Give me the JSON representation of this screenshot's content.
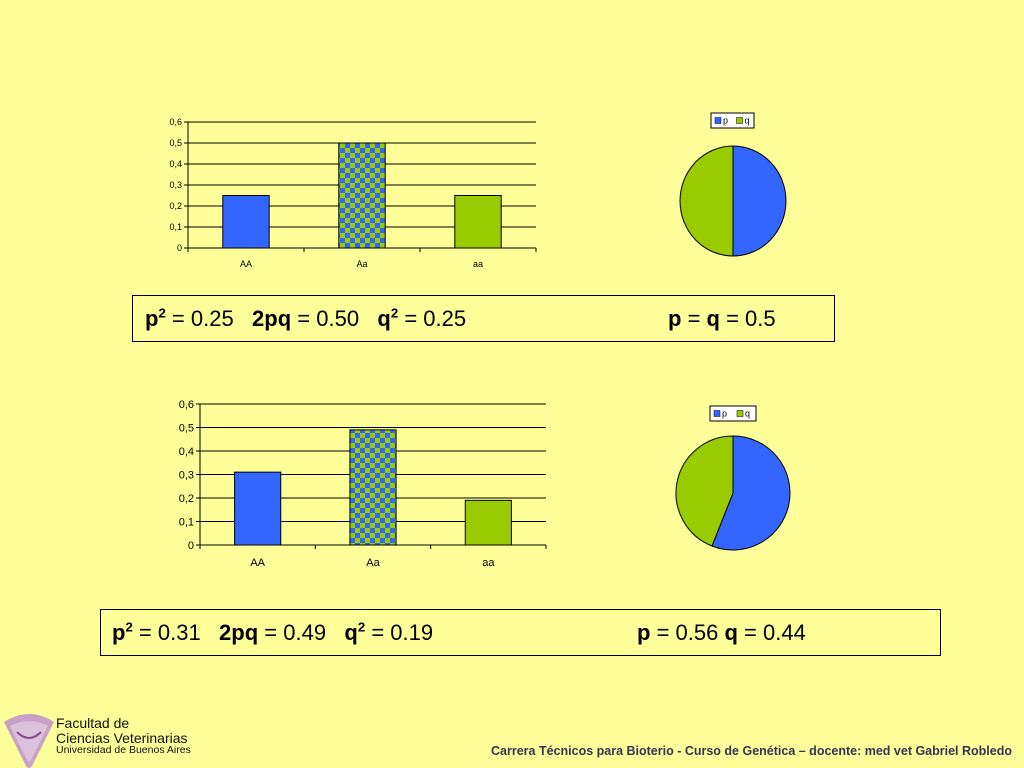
{
  "chart_data": [
    {
      "type": "bar",
      "categories": [
        "AA",
        "Aa",
        "aa"
      ],
      "values": [
        0.25,
        0.5,
        0.25
      ],
      "yticks": [
        "0",
        "0,1",
        "0,2",
        "0,3",
        "0,4",
        "0,5",
        "0,6"
      ],
      "ylim": [
        0,
        0.6
      ],
      "grid": true,
      "colors": [
        "#3366FF",
        "checkered",
        "#99CC00"
      ]
    },
    {
      "type": "pie",
      "legend": [
        "p",
        "q"
      ],
      "values": [
        0.5,
        0.5
      ],
      "colors": [
        "#3366FF",
        "#99CC00"
      ],
      "legend_position": "top"
    },
    {
      "type": "bar",
      "categories": [
        "AA",
        "Aa",
        "aa"
      ],
      "values": [
        0.31,
        0.49,
        0.19
      ],
      "yticks": [
        "0",
        "0,1",
        "0,2",
        "0,3",
        "0,4",
        "0,5",
        "0,6"
      ],
      "ylim": [
        0,
        0.6
      ],
      "grid": true,
      "colors": [
        "#3366FF",
        "checkered",
        "#99CC00"
      ]
    },
    {
      "type": "pie",
      "legend": [
        "p",
        "q"
      ],
      "values": [
        0.56,
        0.44
      ],
      "colors": [
        "#3366FF",
        "#99CC00"
      ],
      "legend_position": "top"
    }
  ],
  "formula1": {
    "p2": "p",
    "p2_val": " = 0.25  ",
    "pq": "2pq",
    "pq_val": " = 0.50  ",
    "q2": "q",
    "q2_val": " = 0.25",
    "p": "p",
    "eq": " = ",
    "q": "q",
    "pq_eq_val": " = 0.5",
    "sup": "2"
  },
  "formula2": {
    "p2": "p",
    "p2_val": " = 0.31  ",
    "pq": "2pq",
    "pq_val": " = 0.49  ",
    "q2": "q",
    "q2_val": " = 0.19",
    "p": "p",
    "p_val": " = 0.56 ",
    "q": "q",
    "q_val": " = 0.44",
    "sup": "2"
  },
  "logo": {
    "line1": "Facultad de",
    "line2": "Ciencias Veterinarias",
    "line3": "Universidad de Buenos Aires"
  },
  "footer": "Carrera Técnicos para Bioterio -  Curso de Genética – docente: med vet Gabriel Robledo"
}
